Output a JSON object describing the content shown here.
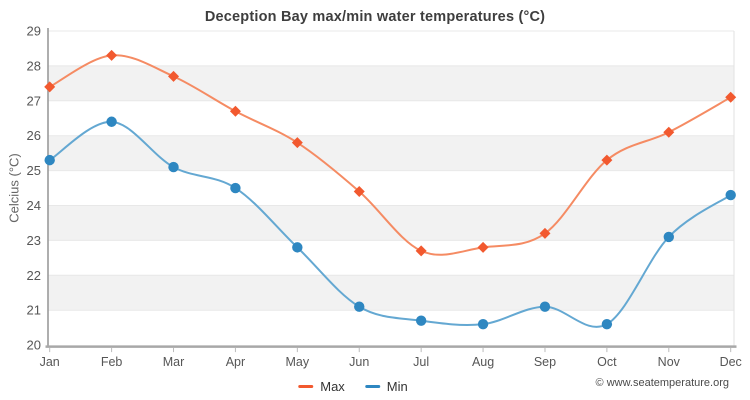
{
  "chart_data": {
    "type": "line",
    "title": "Deception Bay max/min water temperatures (°C)",
    "xlabel": "",
    "ylabel": "Celcius (°C)",
    "categories": [
      "Jan",
      "Feb",
      "Mar",
      "Apr",
      "May",
      "Jun",
      "Jul",
      "Aug",
      "Sep",
      "Oct",
      "Nov",
      "Dec"
    ],
    "series": [
      {
        "name": "Max",
        "marker": "diamond",
        "color": "#f2592f",
        "line_color": "#f58b63",
        "values": [
          27.4,
          28.3,
          27.7,
          26.7,
          25.8,
          24.4,
          22.7,
          22.8,
          23.2,
          25.3,
          26.1,
          27.1
        ]
      },
      {
        "name": "Min",
        "marker": "circle",
        "color": "#2e87c1",
        "line_color": "#64a8d2",
        "values": [
          25.3,
          26.4,
          25.1,
          24.5,
          22.8,
          21.1,
          20.7,
          20.6,
          21.1,
          20.6,
          23.1,
          24.3
        ]
      }
    ],
    "ylim": [
      20,
      29
    ],
    "ytick_step": 1,
    "grid": "horizontal",
    "band_fill": "#f2f2f2",
    "gridline_color": "#e8e8e8",
    "axis_text_color": "#565656",
    "legend_position": "bottom-center"
  },
  "footer": {
    "credit": "© www.seatemperature.org"
  }
}
